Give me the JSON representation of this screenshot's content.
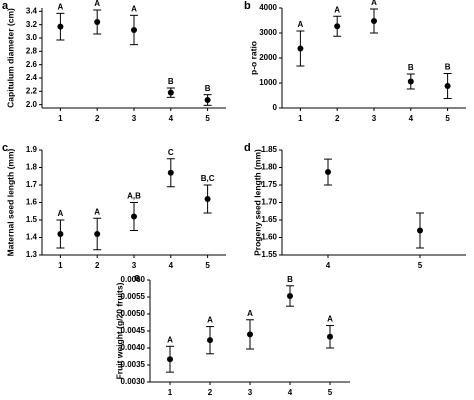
{
  "chart_data": [
    {
      "type": "errorbar",
      "panel": "a",
      "ylabel": "Capitulum diameter (cm)",
      "categories": [
        "1",
        "2",
        "3",
        "4",
        "5"
      ],
      "values": [
        3.17,
        3.24,
        3.12,
        2.18,
        2.07
      ],
      "errors": [
        0.2,
        0.18,
        0.22,
        0.07,
        0.08
      ],
      "letters": [
        "A",
        "A",
        "A",
        "B",
        "B"
      ],
      "ylim": [
        1.95,
        3.45
      ],
      "yticks": [
        {
          "value": 2,
          "label": "2.0"
        },
        {
          "value": 2.2,
          "label": "2.2"
        },
        {
          "value": 2.4,
          "label": "2.4"
        },
        {
          "value": 2.6,
          "label": "2.6"
        },
        {
          "value": 2.8,
          "label": "2.8"
        },
        {
          "value": 3,
          "label": "3.0"
        },
        {
          "value": 3.2,
          "label": "3.2"
        },
        {
          "value": 3.4,
          "label": "3.4"
        }
      ]
    },
    {
      "type": "errorbar",
      "panel": "b",
      "ylabel": "p-o ratio",
      "categories": [
        "1",
        "2",
        "3",
        "4",
        "5"
      ],
      "values": [
        2380,
        3270,
        3480,
        1060,
        880
      ],
      "errors": [
        700,
        400,
        480,
        300,
        500
      ],
      "letters": [
        "A",
        "A",
        "A",
        "B",
        "B"
      ],
      "ylim": [
        0,
        4000
      ],
      "yticks": [
        0,
        1000,
        2000,
        3000,
        4000
      ]
    },
    {
      "type": "errorbar",
      "panel": "c",
      "ylabel": "Maternal seed length (mm)",
      "categories": [
        "1",
        "2",
        "3",
        "4",
        "5"
      ],
      "values": [
        1.42,
        1.42,
        1.52,
        1.77,
        1.62
      ],
      "errors": [
        0.08,
        0.09,
        0.08,
        0.08,
        0.08
      ],
      "letters": [
        "A",
        "A",
        "A,B",
        "C",
        "B,C"
      ],
      "ylim": [
        1.3,
        1.9
      ],
      "yticks": [
        1.3,
        1.4,
        1.5,
        1.6,
        1.7,
        1.8,
        1.9
      ]
    },
    {
      "type": "errorbar",
      "panel": "d",
      "ylabel": "Progeny seed length (mm)",
      "categories": [
        "4",
        "5"
      ],
      "values": [
        1.787,
        1.62
      ],
      "errors": [
        0.037,
        0.05
      ],
      "ylim": [
        1.55,
        1.85
      ],
      "yticks": [
        1.55,
        {
          "value": 1.6,
          "label": "1.60"
        },
        1.65,
        {
          "value": 1.7,
          "label": "1.70"
        },
        1.75,
        {
          "value": 1.8,
          "label": "1.80"
        },
        1.85
      ]
    },
    {
      "type": "errorbar",
      "panel": "e",
      "ylabel": "Fruit weight (g/20 fruits)",
      "categories": [
        "1",
        "2",
        "3",
        "4",
        "5"
      ],
      "values": [
        0.00367,
        0.00423,
        0.0044,
        0.00553,
        0.00433
      ],
      "errors": [
        0.00038,
        0.0004,
        0.00043,
        0.0003,
        0.00033
      ],
      "letters": [
        "A",
        "A",
        "A",
        "B",
        "A"
      ],
      "ylim": [
        0.003,
        0.006
      ],
      "yticks": [
        {
          "value": 0.003,
          "label": "0.0030"
        },
        {
          "value": 0.0035,
          "label": "0.0035"
        },
        {
          "value": 0.004,
          "label": "0.0040"
        },
        {
          "value": 0.0045,
          "label": "0.0045"
        },
        {
          "value": 0.005,
          "label": "0.0050"
        },
        {
          "value": 0.0055,
          "label": "0.0055"
        },
        {
          "value": 0.006,
          "label": "0.0060"
        }
      ]
    }
  ]
}
